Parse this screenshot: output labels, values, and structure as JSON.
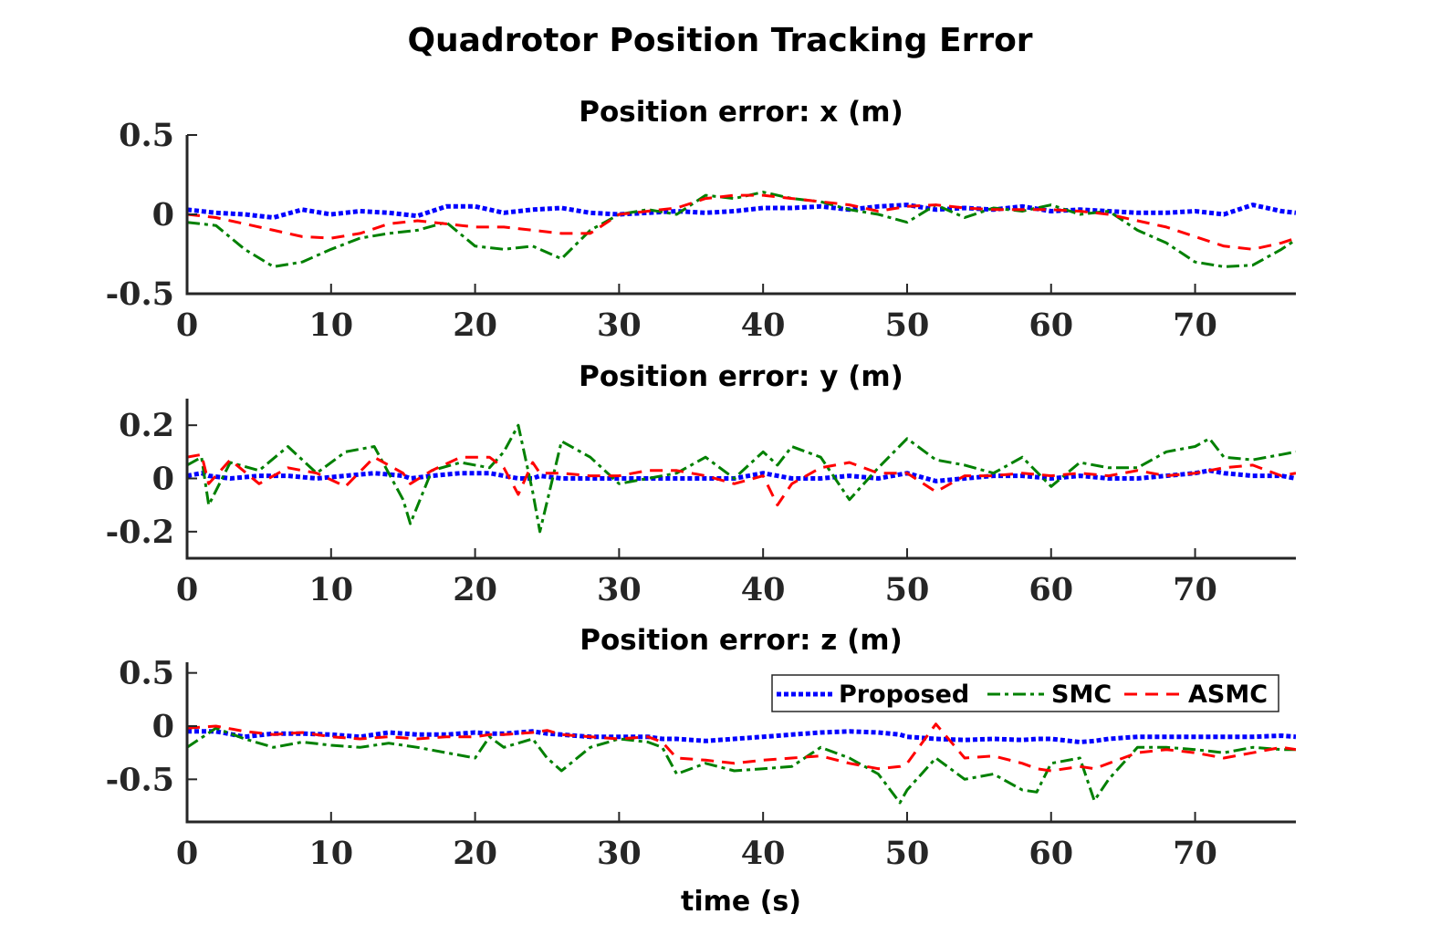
{
  "figure": {
    "title": "Quadrotor Position Tracking Error",
    "xlabel": "time (s)"
  },
  "colors": {
    "Proposed": "#0000ff",
    "SMC": "#008000",
    "ASMC": "#ff0000",
    "axes": "#262626"
  },
  "chart_data": [
    {
      "type": "line",
      "title": "Position error: x (m)",
      "xlabel": "",
      "ylabel": "",
      "xlim": [
        0,
        77
      ],
      "ylim": [
        -0.5,
        0.5
      ],
      "xticks": [
        "0",
        "10",
        "20",
        "30",
        "40",
        "50",
        "60",
        "70"
      ],
      "yticks": [
        "-0.5",
        "0",
        "0.5"
      ],
      "x": [
        0,
        2,
        4,
        6,
        8,
        10,
        12,
        14,
        16,
        18,
        20,
        22,
        24,
        26,
        28,
        30,
        32,
        34,
        36,
        38,
        40,
        42,
        44,
        46,
        48,
        50,
        52,
        54,
        56,
        58,
        60,
        62,
        64,
        66,
        68,
        70,
        72,
        74,
        76,
        77
      ],
      "series": [
        {
          "name": "Proposed",
          "style": "dotted",
          "values": [
            0.03,
            0.01,
            0.0,
            -0.02,
            0.03,
            0.0,
            0.02,
            0.01,
            -0.01,
            0.05,
            0.05,
            0.01,
            0.03,
            0.04,
            0.01,
            0.0,
            0.01,
            0.02,
            0.01,
            0.02,
            0.04,
            0.04,
            0.05,
            0.03,
            0.05,
            0.06,
            0.03,
            0.04,
            0.03,
            0.05,
            0.02,
            0.03,
            0.02,
            0.01,
            0.01,
            0.02,
            0.0,
            0.06,
            0.02,
            0.01
          ]
        },
        {
          "name": "SMC",
          "style": "dashdot",
          "values": [
            -0.05,
            -0.07,
            -0.22,
            -0.33,
            -0.3,
            -0.22,
            -0.15,
            -0.12,
            -0.1,
            -0.05,
            -0.2,
            -0.22,
            -0.2,
            -0.28,
            -0.1,
            0.0,
            0.03,
            0.0,
            0.12,
            0.1,
            0.14,
            0.1,
            0.08,
            0.03,
            0.0,
            -0.05,
            0.06,
            -0.02,
            0.04,
            0.02,
            0.06,
            0.0,
            0.02,
            -0.1,
            -0.18,
            -0.3,
            -0.33,
            -0.32,
            -0.22,
            -0.16
          ]
        },
        {
          "name": "ASMC",
          "style": "dashed",
          "values": [
            0.0,
            -0.02,
            -0.06,
            -0.1,
            -0.14,
            -0.15,
            -0.12,
            -0.06,
            -0.04,
            -0.06,
            -0.08,
            -0.08,
            -0.1,
            -0.12,
            -0.12,
            0.0,
            0.02,
            0.04,
            0.1,
            0.12,
            0.12,
            0.1,
            0.08,
            0.06,
            0.02,
            0.05,
            0.06,
            0.04,
            0.03,
            0.03,
            0.03,
            0.02,
            0.0,
            -0.04,
            -0.08,
            -0.14,
            -0.2,
            -0.22,
            -0.18,
            -0.15
          ]
        }
      ]
    },
    {
      "type": "line",
      "title": "Position error: y (m)",
      "xlabel": "",
      "ylabel": "",
      "xlim": [
        0,
        77
      ],
      "ylim": [
        -0.3,
        0.3
      ],
      "xticks": [
        "0",
        "10",
        "20",
        "30",
        "40",
        "50",
        "60",
        "70"
      ],
      "yticks": [
        "-0.2",
        "0",
        "0.2"
      ],
      "x": [
        0,
        1,
        1.5,
        3,
        5,
        7,
        9,
        11,
        13,
        15,
        15.5,
        17,
        19,
        21,
        22,
        23,
        24,
        24.5,
        26,
        28,
        30,
        32,
        34,
        36,
        38,
        40,
        41,
        42,
        44,
        46,
        48,
        50,
        52,
        54,
        56,
        58,
        60,
        62,
        64,
        66,
        68,
        70,
        71,
        72,
        74,
        76,
        77
      ],
      "series": [
        {
          "name": "Proposed",
          "style": "dotted",
          "values": [
            0.01,
            0.02,
            0.01,
            0.0,
            0.01,
            0.01,
            0.0,
            0.01,
            0.02,
            0.01,
            0.0,
            0.01,
            0.02,
            0.02,
            0.01,
            0.0,
            0.0,
            0.01,
            0.0,
            0.0,
            0.0,
            0.0,
            0.0,
            0.0,
            0.0,
            0.02,
            0.01,
            0.0,
            0.0,
            0.01,
            0.0,
            0.02,
            -0.01,
            0.0,
            0.01,
            0.01,
            0.0,
            0.01,
            0.0,
            0.0,
            0.01,
            0.02,
            0.03,
            0.02,
            0.01,
            0.01,
            0.0
          ]
        },
        {
          "name": "SMC",
          "style": "dashdot",
          "values": [
            0.05,
            0.08,
            -0.1,
            0.06,
            0.03,
            0.12,
            0.02,
            0.1,
            0.12,
            -0.08,
            -0.17,
            0.03,
            0.06,
            0.04,
            0.1,
            0.2,
            -0.05,
            -0.2,
            0.14,
            0.08,
            -0.02,
            0.0,
            0.02,
            0.08,
            0.0,
            0.1,
            0.05,
            0.12,
            0.08,
            -0.08,
            0.04,
            0.15,
            0.07,
            0.05,
            0.02,
            0.08,
            -0.03,
            0.06,
            0.04,
            0.04,
            0.1,
            0.12,
            0.15,
            0.08,
            0.07,
            0.09,
            0.1
          ]
        },
        {
          "name": "ASMC",
          "style": "dashed",
          "values": [
            0.08,
            0.09,
            -0.02,
            0.07,
            -0.02,
            0.04,
            0.02,
            -0.03,
            0.08,
            0.02,
            -0.02,
            0.03,
            0.08,
            0.08,
            0.04,
            -0.06,
            0.06,
            0.02,
            0.02,
            0.01,
            0.01,
            0.03,
            0.03,
            0.01,
            -0.02,
            0.01,
            -0.1,
            -0.02,
            0.04,
            0.06,
            0.02,
            0.02,
            -0.05,
            0.01,
            0.01,
            0.02,
            0.01,
            0.02,
            0.01,
            0.03,
            0.01,
            0.02,
            0.03,
            0.04,
            0.05,
            0.01,
            0.02
          ]
        }
      ]
    },
    {
      "type": "line",
      "title": "Position error: z (m)",
      "xlabel": "time (s)",
      "ylabel": "",
      "xlim": [
        0,
        77
      ],
      "ylim": [
        -0.9,
        0.6
      ],
      "xticks": [
        "0",
        "10",
        "20",
        "30",
        "40",
        "50",
        "60",
        "70"
      ],
      "yticks": [
        "-0.5",
        "0",
        "0.5"
      ],
      "legend": [
        "Proposed",
        "SMC",
        "ASMC"
      ],
      "legend_position": "top-right",
      "x": [
        0,
        2,
        4,
        6,
        8,
        10,
        12,
        14,
        16,
        18,
        20,
        21,
        22,
        24,
        25,
        26,
        28,
        30,
        32,
        33,
        34,
        36,
        38,
        40,
        42,
        44,
        46,
        48,
        49.5,
        50,
        52,
        54,
        56,
        58,
        59,
        60,
        62,
        63,
        64,
        66,
        68,
        70,
        72,
        74,
        76,
        77
      ],
      "series": [
        {
          "name": "Proposed",
          "style": "dotted",
          "values": [
            -0.05,
            -0.05,
            -0.1,
            -0.07,
            -0.07,
            -0.08,
            -0.1,
            -0.06,
            -0.08,
            -0.08,
            -0.06,
            -0.07,
            -0.07,
            -0.05,
            -0.07,
            -0.08,
            -0.1,
            -0.1,
            -0.1,
            -0.12,
            -0.12,
            -0.14,
            -0.12,
            -0.1,
            -0.08,
            -0.06,
            -0.05,
            -0.06,
            -0.08,
            -0.1,
            -0.12,
            -0.13,
            -0.12,
            -0.13,
            -0.12,
            -0.12,
            -0.15,
            -0.14,
            -0.12,
            -0.1,
            -0.1,
            -0.1,
            -0.1,
            -0.1,
            -0.09,
            -0.1
          ]
        },
        {
          "name": "SMC",
          "style": "dashdot",
          "values": [
            -0.2,
            -0.02,
            -0.12,
            -0.2,
            -0.15,
            -0.18,
            -0.2,
            -0.16,
            -0.2,
            -0.25,
            -0.3,
            -0.1,
            -0.2,
            -0.12,
            -0.3,
            -0.42,
            -0.2,
            -0.12,
            -0.15,
            -0.2,
            -0.45,
            -0.35,
            -0.42,
            -0.4,
            -0.38,
            -0.2,
            -0.3,
            -0.45,
            -0.72,
            -0.6,
            -0.3,
            -0.5,
            -0.45,
            -0.6,
            -0.62,
            -0.35,
            -0.3,
            -0.7,
            -0.5,
            -0.2,
            -0.2,
            -0.22,
            -0.25,
            -0.2,
            -0.22,
            -0.22
          ]
        },
        {
          "name": "ASMC",
          "style": "dashed",
          "values": [
            -0.02,
            0.0,
            -0.05,
            -0.08,
            -0.06,
            -0.1,
            -0.12,
            -0.1,
            -0.12,
            -0.1,
            -0.1,
            -0.08,
            -0.08,
            -0.06,
            -0.04,
            -0.08,
            -0.1,
            -0.12,
            -0.1,
            -0.15,
            -0.3,
            -0.32,
            -0.35,
            -0.32,
            -0.3,
            -0.28,
            -0.35,
            -0.4,
            -0.38,
            -0.35,
            0.02,
            -0.3,
            -0.28,
            -0.35,
            -0.4,
            -0.42,
            -0.38,
            -0.4,
            -0.35,
            -0.25,
            -0.22,
            -0.25,
            -0.3,
            -0.25,
            -0.2,
            -0.22
          ]
        }
      ]
    }
  ]
}
